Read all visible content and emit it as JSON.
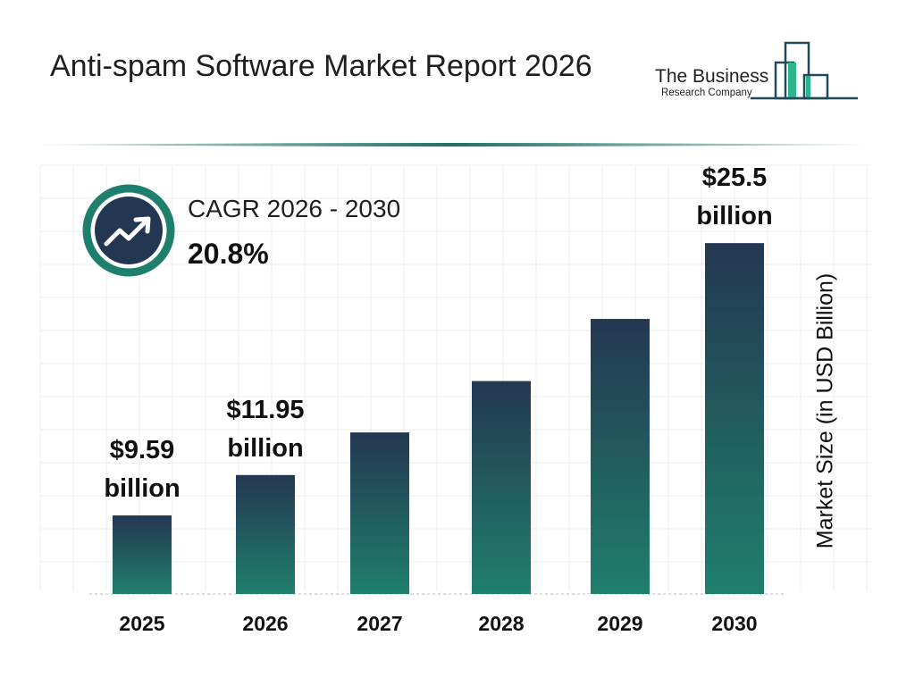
{
  "header": {
    "title": "Anti-spam Software Market Report 2026"
  },
  "logo": {
    "line1": "The Business",
    "line2": "Research Company"
  },
  "cagr": {
    "label": "CAGR 2026 - 2030",
    "value": "20.8%",
    "icon": "trending-up-icon"
  },
  "colors": {
    "bar_top": "#243752",
    "bar_bottom": "#1f7f6d",
    "accent": "#1f7f6d",
    "navy": "#243752"
  },
  "chart_data": {
    "type": "bar",
    "title": "Anti-spam Software Market Report 2026",
    "categories": [
      "2025",
      "2026",
      "2027",
      "2028",
      "2029",
      "2030"
    ],
    "values": [
      9.59,
      11.95,
      14.44,
      17.44,
      21.07,
      25.5
    ],
    "data_labels": [
      {
        "index": 0,
        "line1": "$9.59",
        "line2": "billion"
      },
      {
        "index": 1,
        "line1": "$11.95",
        "line2": "billion"
      },
      {
        "index": 5,
        "line1": "$25.5",
        "line2": "billion"
      }
    ],
    "xlabel": "",
    "ylabel": "Market Size (in USD Billion)",
    "ylim": [
      5,
      26.5
    ],
    "grid": true
  }
}
